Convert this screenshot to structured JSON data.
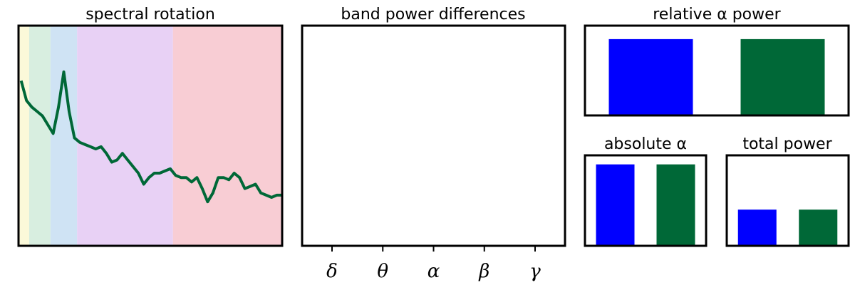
{
  "colors": {
    "series_a": "#0000ff",
    "series_b": "#006837",
    "line": "#006837",
    "band_delta": "#fbf9d9",
    "band_theta": "#d8eee0",
    "band_alpha": "#cfe3f4",
    "band_beta": "#e8d1f5",
    "band_gamma": "#f8cdd4"
  },
  "chart_data": [
    {
      "type": "line",
      "title": "spectral rotation",
      "x": [
        1,
        2,
        3,
        4,
        5,
        6,
        7,
        8,
        9,
        10,
        11,
        12,
        13,
        14,
        15,
        16,
        17,
        18,
        19,
        20,
        21,
        22,
        23,
        24,
        25,
        26,
        27,
        28,
        29,
        30,
        31,
        32,
        33,
        34,
        35,
        36,
        37,
        38,
        39,
        40,
        41,
        42,
        43,
        44,
        45,
        46,
        47,
        48,
        49,
        50
      ],
      "y": [
        0.75,
        0.66,
        0.63,
        0.61,
        0.59,
        0.55,
        0.51,
        0.63,
        0.79,
        0.61,
        0.49,
        0.47,
        0.46,
        0.45,
        0.44,
        0.45,
        0.42,
        0.38,
        0.39,
        0.42,
        0.39,
        0.36,
        0.33,
        0.28,
        0.31,
        0.33,
        0.33,
        0.34,
        0.35,
        0.32,
        0.31,
        0.31,
        0.29,
        0.31,
        0.26,
        0.2,
        0.24,
        0.31,
        0.31,
        0.3,
        0.33,
        0.31,
        0.26,
        0.27,
        0.28,
        0.24,
        0.23,
        0.22,
        0.23,
        0.23
      ],
      "ylim": [
        0,
        1
      ],
      "bands": [
        {
          "name": "delta",
          "from": 0.5,
          "to": 2.5
        },
        {
          "name": "theta",
          "from": 2.5,
          "to": 6.5
        },
        {
          "name": "alpha",
          "from": 6.5,
          "to": 11.5
        },
        {
          "name": "beta",
          "from": 11.5,
          "to": 29.5
        },
        {
          "name": "gamma",
          "from": 29.5,
          "to": 50
        }
      ],
      "grid": false
    },
    {
      "type": "bar",
      "title": "band power differences",
      "categories": [
        "δ",
        "θ",
        "α",
        "β",
        "γ"
      ],
      "values": [
        0,
        0,
        0,
        0,
        0
      ],
      "grid": false
    },
    {
      "type": "bar",
      "title": "relative α power",
      "categories": [
        "",
        ""
      ],
      "values": [
        0.85,
        0.85
      ],
      "ylim": [
        0,
        1
      ]
    },
    {
      "type": "bar",
      "title": "absolute α",
      "categories": [
        "",
        ""
      ],
      "values": [
        0.9,
        0.9
      ],
      "ylim": [
        0,
        1
      ]
    },
    {
      "type": "bar",
      "title": "total power",
      "categories": [
        "",
        ""
      ],
      "values": [
        0.4,
        0.4
      ],
      "ylim": [
        0,
        1
      ]
    }
  ]
}
